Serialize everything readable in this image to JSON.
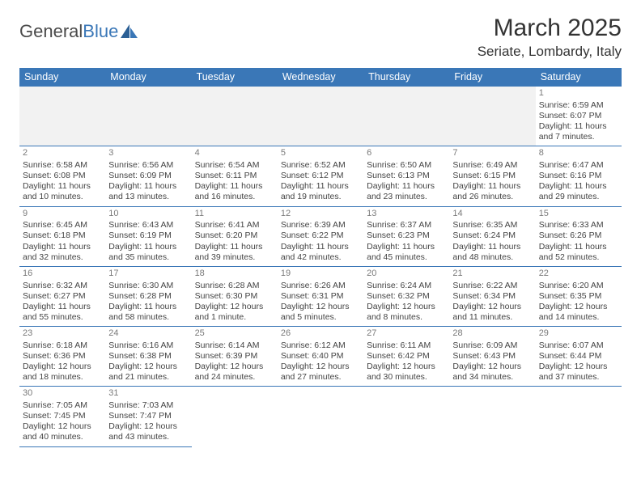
{
  "logo": {
    "part1": "General",
    "part2": "Blue"
  },
  "title": "March 2025",
  "location": "Seriate, Lombardy, Italy",
  "header_bg": "#3a77b7",
  "header_text": "#ffffff",
  "border_color": "#3a77b7",
  "blank_bg": "#f2f2f2",
  "cell_font_size": 10.5,
  "day_header_font_size": 12.5,
  "title_font_size": 30,
  "location_font_size": 17,
  "days": [
    "Sunday",
    "Monday",
    "Tuesday",
    "Wednesday",
    "Thursday",
    "Friday",
    "Saturday"
  ],
  "weeks": [
    [
      null,
      null,
      null,
      null,
      null,
      null,
      {
        "n": "1",
        "sr": "Sunrise: 6:59 AM",
        "ss": "Sunset: 6:07 PM",
        "dl": "Daylight: 11 hours and 7 minutes."
      }
    ],
    [
      {
        "n": "2",
        "sr": "Sunrise: 6:58 AM",
        "ss": "Sunset: 6:08 PM",
        "dl": "Daylight: 11 hours and 10 minutes."
      },
      {
        "n": "3",
        "sr": "Sunrise: 6:56 AM",
        "ss": "Sunset: 6:09 PM",
        "dl": "Daylight: 11 hours and 13 minutes."
      },
      {
        "n": "4",
        "sr": "Sunrise: 6:54 AM",
        "ss": "Sunset: 6:11 PM",
        "dl": "Daylight: 11 hours and 16 minutes."
      },
      {
        "n": "5",
        "sr": "Sunrise: 6:52 AM",
        "ss": "Sunset: 6:12 PM",
        "dl": "Daylight: 11 hours and 19 minutes."
      },
      {
        "n": "6",
        "sr": "Sunrise: 6:50 AM",
        "ss": "Sunset: 6:13 PM",
        "dl": "Daylight: 11 hours and 23 minutes."
      },
      {
        "n": "7",
        "sr": "Sunrise: 6:49 AM",
        "ss": "Sunset: 6:15 PM",
        "dl": "Daylight: 11 hours and 26 minutes."
      },
      {
        "n": "8",
        "sr": "Sunrise: 6:47 AM",
        "ss": "Sunset: 6:16 PM",
        "dl": "Daylight: 11 hours and 29 minutes."
      }
    ],
    [
      {
        "n": "9",
        "sr": "Sunrise: 6:45 AM",
        "ss": "Sunset: 6:18 PM",
        "dl": "Daylight: 11 hours and 32 minutes."
      },
      {
        "n": "10",
        "sr": "Sunrise: 6:43 AM",
        "ss": "Sunset: 6:19 PM",
        "dl": "Daylight: 11 hours and 35 minutes."
      },
      {
        "n": "11",
        "sr": "Sunrise: 6:41 AM",
        "ss": "Sunset: 6:20 PM",
        "dl": "Daylight: 11 hours and 39 minutes."
      },
      {
        "n": "12",
        "sr": "Sunrise: 6:39 AM",
        "ss": "Sunset: 6:22 PM",
        "dl": "Daylight: 11 hours and 42 minutes."
      },
      {
        "n": "13",
        "sr": "Sunrise: 6:37 AM",
        "ss": "Sunset: 6:23 PM",
        "dl": "Daylight: 11 hours and 45 minutes."
      },
      {
        "n": "14",
        "sr": "Sunrise: 6:35 AM",
        "ss": "Sunset: 6:24 PM",
        "dl": "Daylight: 11 hours and 48 minutes."
      },
      {
        "n": "15",
        "sr": "Sunrise: 6:33 AM",
        "ss": "Sunset: 6:26 PM",
        "dl": "Daylight: 11 hours and 52 minutes."
      }
    ],
    [
      {
        "n": "16",
        "sr": "Sunrise: 6:32 AM",
        "ss": "Sunset: 6:27 PM",
        "dl": "Daylight: 11 hours and 55 minutes."
      },
      {
        "n": "17",
        "sr": "Sunrise: 6:30 AM",
        "ss": "Sunset: 6:28 PM",
        "dl": "Daylight: 11 hours and 58 minutes."
      },
      {
        "n": "18",
        "sr": "Sunrise: 6:28 AM",
        "ss": "Sunset: 6:30 PM",
        "dl": "Daylight: 12 hours and 1 minute."
      },
      {
        "n": "19",
        "sr": "Sunrise: 6:26 AM",
        "ss": "Sunset: 6:31 PM",
        "dl": "Daylight: 12 hours and 5 minutes."
      },
      {
        "n": "20",
        "sr": "Sunrise: 6:24 AM",
        "ss": "Sunset: 6:32 PM",
        "dl": "Daylight: 12 hours and 8 minutes."
      },
      {
        "n": "21",
        "sr": "Sunrise: 6:22 AM",
        "ss": "Sunset: 6:34 PM",
        "dl": "Daylight: 12 hours and 11 minutes."
      },
      {
        "n": "22",
        "sr": "Sunrise: 6:20 AM",
        "ss": "Sunset: 6:35 PM",
        "dl": "Daylight: 12 hours and 14 minutes."
      }
    ],
    [
      {
        "n": "23",
        "sr": "Sunrise: 6:18 AM",
        "ss": "Sunset: 6:36 PM",
        "dl": "Daylight: 12 hours and 18 minutes."
      },
      {
        "n": "24",
        "sr": "Sunrise: 6:16 AM",
        "ss": "Sunset: 6:38 PM",
        "dl": "Daylight: 12 hours and 21 minutes."
      },
      {
        "n": "25",
        "sr": "Sunrise: 6:14 AM",
        "ss": "Sunset: 6:39 PM",
        "dl": "Daylight: 12 hours and 24 minutes."
      },
      {
        "n": "26",
        "sr": "Sunrise: 6:12 AM",
        "ss": "Sunset: 6:40 PM",
        "dl": "Daylight: 12 hours and 27 minutes."
      },
      {
        "n": "27",
        "sr": "Sunrise: 6:11 AM",
        "ss": "Sunset: 6:42 PM",
        "dl": "Daylight: 12 hours and 30 minutes."
      },
      {
        "n": "28",
        "sr": "Sunrise: 6:09 AM",
        "ss": "Sunset: 6:43 PM",
        "dl": "Daylight: 12 hours and 34 minutes."
      },
      {
        "n": "29",
        "sr": "Sunrise: 6:07 AM",
        "ss": "Sunset: 6:44 PM",
        "dl": "Daylight: 12 hours and 37 minutes."
      }
    ],
    [
      {
        "n": "30",
        "sr": "Sunrise: 7:05 AM",
        "ss": "Sunset: 7:45 PM",
        "dl": "Daylight: 12 hours and 40 minutes."
      },
      {
        "n": "31",
        "sr": "Sunrise: 7:03 AM",
        "ss": "Sunset: 7:47 PM",
        "dl": "Daylight: 12 hours and 43 minutes."
      },
      null,
      null,
      null,
      null,
      null
    ]
  ]
}
